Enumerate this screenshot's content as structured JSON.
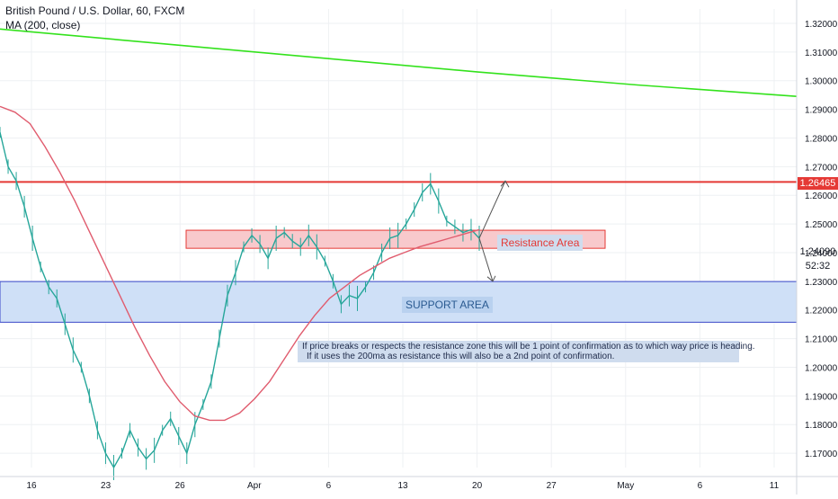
{
  "header": {
    "title": "British Pound / U.S. Dollar, 60, FXCM",
    "indicator": "MA (200, close)"
  },
  "colors": {
    "candle": "#26a69a",
    "ma_fast": "#e05c6e",
    "ma_slow": "#33e21c",
    "resistance_line": "#e53935",
    "resistance_fill": "#f8c9cc",
    "support_fill": "#cfe0f7",
    "support_border": "#3b49c9",
    "note_fill": "#cfdcee",
    "grid": "#eef0f3",
    "axis_text": "#131722"
  },
  "annotations": {
    "resistance_label": "Resistance Area",
    "support_label": "SUPPORT AREA",
    "note_line1": "If price breaks or respects the resistance zone this will be 1 point of confirmation as to which way price is heading.",
    "note_line2": "If it uses the 200ma as resistance this will also be a 2nd point of confirmation."
  },
  "price_tags": {
    "current_price": "1.26465",
    "ma_price": "1.24090",
    "countdown": "52:32"
  },
  "chart_data": {
    "type": "line",
    "symbol": "GBPUSD",
    "timeframe": "60",
    "ylim": [
      1.165,
      1.325
    ],
    "y_ticks": [
      "1.17000",
      "1.18000",
      "1.19000",
      "1.20000",
      "1.21000",
      "1.22000",
      "1.23000",
      "1.24000",
      "1.25000",
      "1.26000",
      "1.27000",
      "1.28000",
      "1.29000",
      "1.30000",
      "1.31000",
      "1.32000"
    ],
    "x_ticks": [
      "16",
      "23",
      "26",
      "Apr",
      "6",
      "13",
      "20",
      "27",
      "May",
      "6",
      "11"
    ],
    "horizontal_line": 1.26465,
    "resistance_zone": [
      1.2415,
      1.2478
    ],
    "support_zone": [
      1.2157,
      1.2299
    ],
    "series": [
      {
        "values": [
          1.282,
          1.27,
          1.265,
          1.256,
          1.245,
          1.235,
          1.228,
          1.224,
          1.215,
          1.206,
          1.2,
          1.19,
          1.178,
          1.17,
          1.165,
          1.17,
          1.178,
          1.172,
          1.168,
          1.171,
          1.178,
          1.182,
          1.176,
          1.17,
          1.18,
          1.187,
          1.195,
          1.21,
          1.225,
          1.233,
          1.242,
          1.246,
          1.243,
          1.238,
          1.245,
          1.247,
          1.244,
          1.242,
          1.246,
          1.242,
          1.237,
          1.23,
          1.222,
          1.225,
          1.224,
          1.228,
          1.233,
          1.24,
          1.245,
          1.246,
          1.25,
          1.255,
          1.261,
          1.264,
          1.258,
          1.251,
          1.249,
          1.247,
          1.248,
          1.245
        ]
      },
      {
        "name": "MA (200, close)",
        "values": [
          1.291,
          1.289,
          1.285,
          1.277,
          1.268,
          1.258,
          1.247,
          1.236,
          1.225,
          1.214,
          1.204,
          1.195,
          1.188,
          1.183,
          1.1815,
          1.1815,
          1.184,
          1.189,
          1.195,
          1.203,
          1.211,
          1.218,
          1.224,
          1.228,
          1.232,
          1.235,
          1.238,
          1.24,
          1.242,
          1.2435,
          1.245,
          1.2465,
          1.248
        ]
      },
      {
        "values": [
          1.318,
          1.313,
          1.308,
          1.303,
          1.2985,
          1.2945
        ]
      }
    ]
  }
}
